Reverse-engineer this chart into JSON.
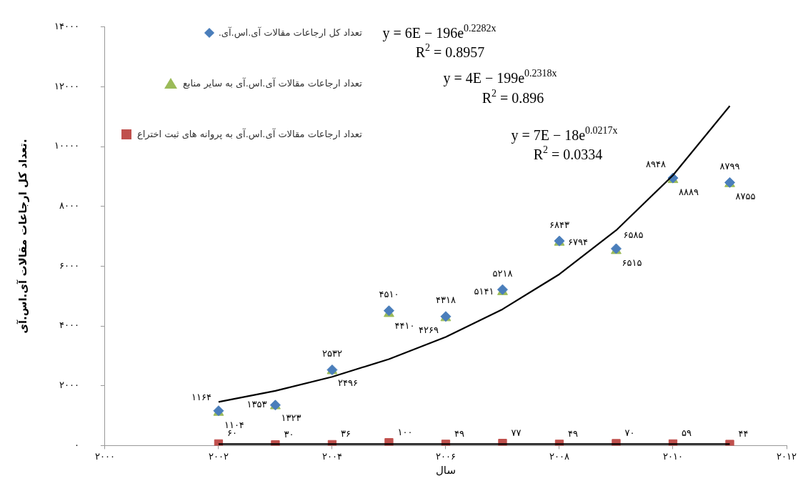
{
  "chart_data": {
    "type": "scatter",
    "xlabel": "سال",
    "ylabel": "تعداد کل ارجاعات مقالات آی.اس.آی.",
    "x": [
      2002,
      2003,
      2004,
      2005,
      2006,
      2007,
      2008,
      2009,
      2010,
      2011
    ],
    "series": [
      {
        "name": "تعداد کل ارجاعات مقالات آی.اس.آی.",
        "color": "#4a7ebb",
        "marker": "diamond",
        "values": [
          1164,
          1353,
          2532,
          4510,
          4318,
          5218,
          6843,
          6585,
          8948,
          8799
        ],
        "value_labels": [
          "۱۱۶۴",
          "۱۳۵۳",
          "۲۵۳۲",
          "۴۵۱۰",
          "۴۳۱۸",
          "۵۲۱۸",
          "۶۸۴۳",
          "۶۵۸۵",
          "۸۹۴۸",
          "۸۷۹۹"
        ]
      },
      {
        "name": "تعداد ارجاعات مقالات آی.اس.آی به سایر منابع",
        "color": "#9bbb59",
        "marker": "triangle",
        "values": [
          1104,
          1323,
          2496,
          4410,
          4269,
          5141,
          6794,
          6515,
          8889,
          8755
        ],
        "value_labels": [
          "۱۱۰۴",
          "۱۳۲۳",
          "۲۴۹۶",
          "۴۴۱۰",
          "۴۲۶۹",
          "۵۱۴۱",
          "۶۷۹۴",
          "۶۵۱۵",
          "۸۸۸۹",
          "۸۷۵۵"
        ]
      },
      {
        "name": "تعداد ارجاعات مقالات آی.اس.آی به پروانه های ثبت اختراع",
        "color": "#c0504d",
        "marker": "square",
        "values": [
          60,
          30,
          36,
          100,
          49,
          77,
          49,
          70,
          59,
          44
        ],
        "value_labels": [
          "۶۰",
          "۳۰",
          "۳۶",
          "۱۰۰",
          "۴۹",
          "۷۷",
          "۴۹",
          "۷۰",
          "۵۹",
          "۴۴"
        ]
      },
      {
        "type": "line",
        "color": "#000000",
        "marker": "none",
        "x": [
          2002,
          2003,
          2004,
          2005,
          2006,
          2007,
          2008,
          2009,
          2010,
          2011
        ],
        "values": [
          1460,
          1830,
          2300,
          2890,
          3630,
          4560,
          5730,
          7200,
          9040,
          11360
        ]
      },
      {
        "type": "line",
        "color": "#000000",
        "marker": "none",
        "x": [
          2002,
          2011
        ],
        "values": [
          50,
          50
        ]
      }
    ],
    "xlim": [
      2000,
      2012
    ],
    "xticks": [
      {
        "value": 2000,
        "label": "۲۰۰۰"
      },
      {
        "value": 2002,
        "label": "۲۰۰۲"
      },
      {
        "value": 2004,
        "label": "۲۰۰۴"
      },
      {
        "value": 2006,
        "label": "۲۰۰۶"
      },
      {
        "value": 2008,
        "label": "۲۰۰۸"
      },
      {
        "value": 2010,
        "label": "۲۰۱۰"
      },
      {
        "value": 2012,
        "label": "۲۰۱۲"
      }
    ],
    "ylim": [
      0,
      14000
    ],
    "yticks": [
      {
        "value": 0,
        "label": "۰"
      },
      {
        "value": 2000,
        "label": "۲۰۰۰"
      },
      {
        "value": 4000,
        "label": "۴۰۰۰"
      },
      {
        "value": 6000,
        "label": "۶۰۰۰"
      },
      {
        "value": 8000,
        "label": "۸۰۰۰"
      },
      {
        "value": 10000,
        "label": "۱۰۰۰۰"
      },
      {
        "value": 12000,
        "label": "۱۲۰۰۰"
      },
      {
        "value": 14000,
        "label": "۱۴۰۰۰"
      }
    ],
    "grid": false,
    "legend": "top left",
    "annotations": [
      "y = 6E − 196e$^{0.2282x}$",
      "R$^{2}$ = 0.8957",
      "y = 4E − 199e$^{0.2318x}$",
      "R$^{2}$ = 0.896",
      "y = 7E − 18e$^{0.0217x}$",
      "R$^{2}$ = 0.0334"
    ]
  }
}
